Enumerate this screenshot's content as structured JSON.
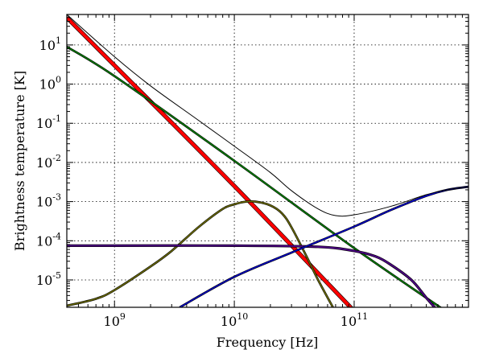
{
  "chart_data": {
    "type": "line",
    "xlabel": "Frequency [Hz]",
    "ylabel": "Brightness temperature [K]",
    "xscale": "log",
    "yscale": "log",
    "xlim": [
      400000000.0,
      900000000000.0
    ],
    "ylim": [
      2e-06,
      60
    ],
    "grid": true,
    "x_ticks": [
      {
        "base": "10",
        "exp": "9",
        "value": 1000000000.0
      },
      {
        "base": "10",
        "exp": "10",
        "value": 10000000000.0
      },
      {
        "base": "10",
        "exp": "11",
        "value": 100000000000.0
      }
    ],
    "y_ticks": [
      {
        "base": "10",
        "exp": "1",
        "value": 10
      },
      {
        "base": "10",
        "exp": "0",
        "value": 1
      },
      {
        "base": "10",
        "exp": "-1",
        "value": 0.1
      },
      {
        "base": "10",
        "exp": "-2",
        "value": 0.01
      },
      {
        "base": "10",
        "exp": "-3",
        "value": 0.001
      },
      {
        "base": "10",
        "exp": "-4",
        "value": 0.0001
      },
      {
        "base": "10",
        "exp": "-5",
        "value": 1e-05
      }
    ],
    "series": [
      {
        "color": "#ff0000",
        "width": 4,
        "outline": true,
        "x": [
          400000000.0,
          1000000000.0,
          10000000000.0,
          100000000000.0
        ],
        "y": [
          50,
          3.0,
          0.0025,
          1.6e-06
        ]
      },
      {
        "color": "#008000",
        "width": 1.5,
        "outline": true,
        "x": [
          400000000.0,
          1000000000.0,
          10000000000.0,
          100000000000.0,
          600000000000.0
        ],
        "y": [
          9.0,
          1.6,
          0.011,
          6.5e-05,
          1.5e-06
        ]
      },
      {
        "color": "#6b6b00",
        "width": 1.5,
        "outline": true,
        "x": [
          400000000.0,
          700000000.0,
          1000000000.0,
          2000000000.0,
          3000000000.0,
          5000000000.0,
          8000000000.0,
          10000000000.0,
          12000000000.0,
          15000000000.0,
          20000000000.0,
          25000000000.0,
          30000000000.0,
          40000000000.0,
          50000000000.0,
          70000000000.0
        ],
        "y": [
          2.2e-06,
          3.3e-06,
          5.5e-06,
          2.2e-05,
          5.5e-05,
          0.00022,
          0.00065,
          0.00085,
          0.00098,
          0.001,
          0.0008,
          0.0005,
          0.00022,
          4e-05,
          1e-05,
          1.5e-06
        ]
      },
      {
        "color": "#4b0082",
        "width": 2,
        "outline": true,
        "x": [
          400000000.0,
          1000000000.0,
          10000000000.0,
          50000000000.0,
          100000000000.0,
          150000000000.0,
          200000000000.0,
          300000000000.0,
          400000000000.0,
          500000000000.0
        ],
        "y": [
          7.5e-05,
          7.5e-05,
          7.5e-05,
          7e-05,
          5.5e-05,
          4e-05,
          2.5e-05,
          1e-05,
          3.5e-06,
          1.6e-06
        ]
      },
      {
        "color": "#0000cd",
        "width": 1.5,
        "outline": true,
        "x": [
          3500000000.0,
          10000000000.0,
          30000000000.0,
          100000000000.0,
          200000000000.0,
          400000000000.0,
          600000000000.0,
          900000000000.0
        ],
        "y": [
          2e-06,
          1.2e-05,
          5e-05,
          0.00023,
          0.0006,
          0.0014,
          0.002,
          0.0024
        ]
      },
      {
        "color": "#000000",
        "width": 1,
        "outline": false,
        "x": [
          400000000.0,
          1000000000.0,
          2000000000.0,
          5000000000.0,
          10000000000.0,
          20000000000.0,
          30000000000.0,
          50000000000.0,
          70000000000.0,
          100000000000.0,
          200000000000.0,
          400000000000.0,
          600000000000.0,
          900000000000.0
        ],
        "y": [
          60,
          5.0,
          0.9,
          0.12,
          0.026,
          0.0055,
          0.0019,
          0.00065,
          0.00044,
          0.00046,
          0.00075,
          0.0015,
          0.002,
          0.0024
        ]
      }
    ]
  }
}
